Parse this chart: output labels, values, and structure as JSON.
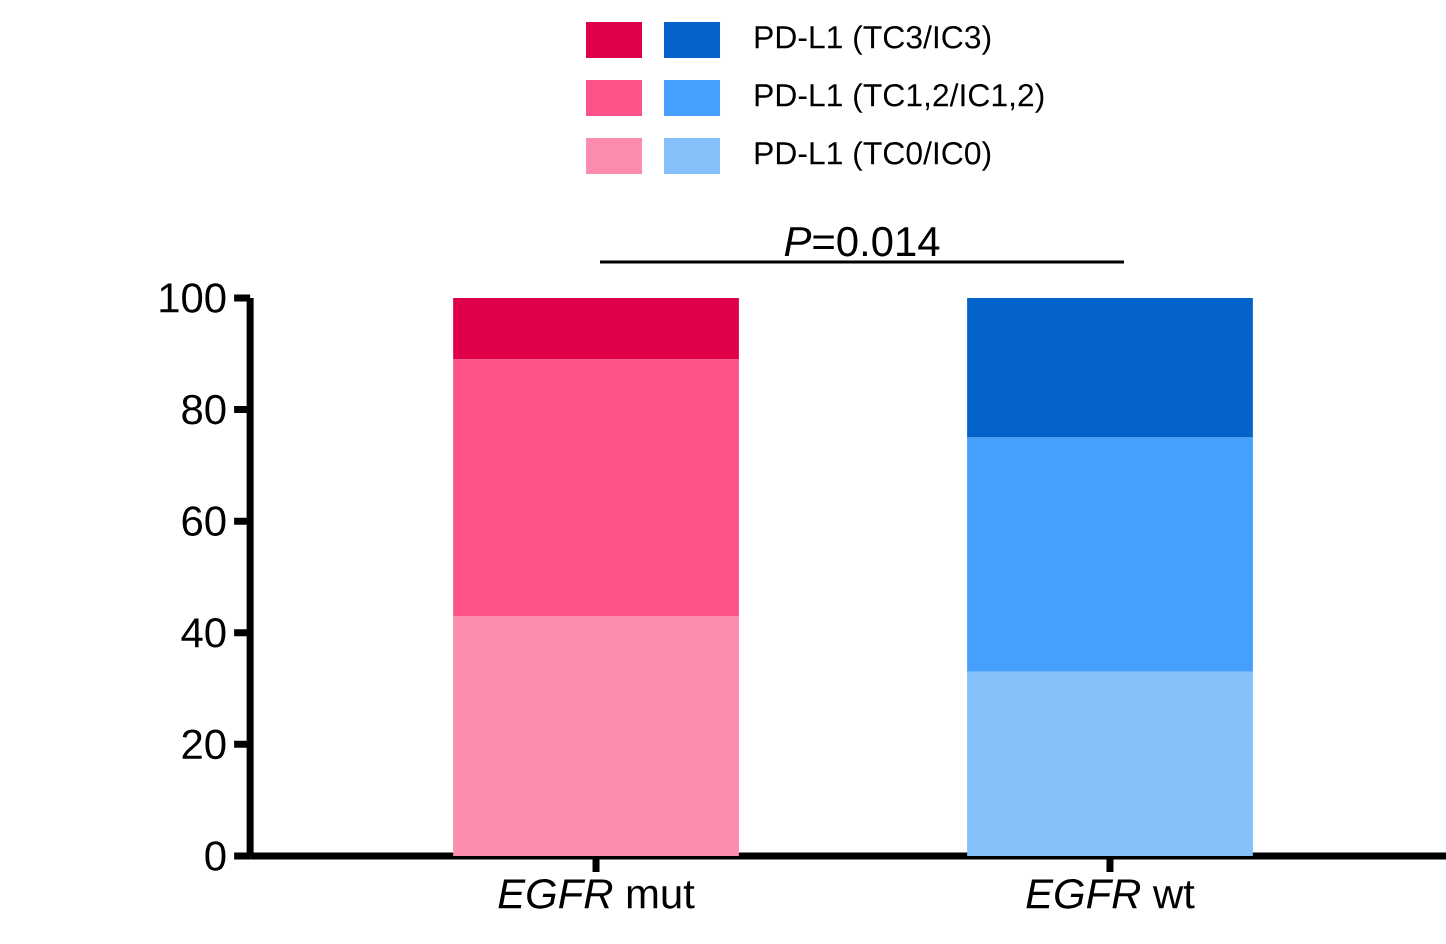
{
  "chart_data": {
    "type": "bar",
    "stacked": true,
    "categories": [
      "*EGFR* mut",
      "*EGFR* wt"
    ],
    "series": [
      {
        "name": "PD-L1 (TC0/IC0)",
        "colors": [
          "#fc8cae",
          "#87c1fc"
        ],
        "values": [
          43,
          33
        ]
      },
      {
        "name": "PD-L1 (TC1,2/IC1,2)",
        "colors": [
          "#fc5287",
          "#459ffc"
        ],
        "values": [
          46,
          42
        ]
      },
      {
        "name": "PD-L1 (TC3/IC3)",
        "colors": [
          "#e0004a",
          "#0463c9"
        ],
        "values": [
          11,
          25
        ]
      }
    ],
    "ylim": [
      0,
      100
    ],
    "yticks": [
      0,
      20,
      40,
      60,
      80,
      100
    ],
    "legend": "top",
    "annotations": [
      "*P*=0.014"
    ]
  }
}
